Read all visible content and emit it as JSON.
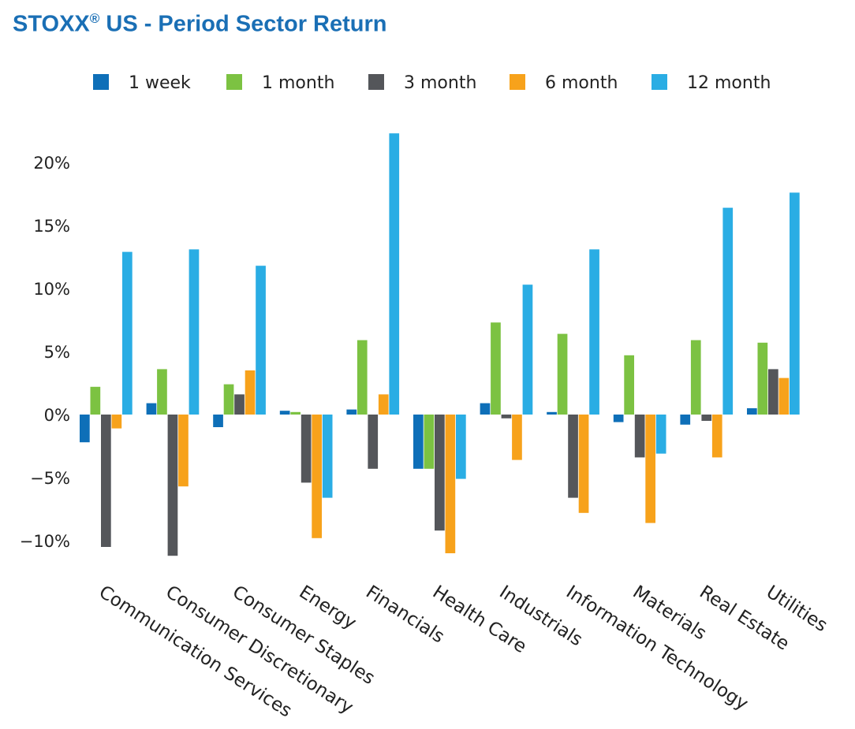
{
  "title": {
    "prefix": "STOXX",
    "sup": "®",
    "rest": " US - Period Sector Return"
  },
  "chart_data": {
    "type": "bar",
    "title": "STOXX® US - Period Sector Return",
    "xlabel": "",
    "ylabel": "",
    "ylim": [
      -12,
      24
    ],
    "yticks": [
      20,
      15,
      10,
      5,
      0,
      -5,
      -10
    ],
    "ytick_labels": [
      "20%",
      "15%",
      "10%",
      "5%",
      "0%",
      "−5%",
      "−10%"
    ],
    "grid": false,
    "legend_position": "top",
    "categories": [
      "Communication Services",
      "Consumer Discretionary",
      "Consumer Staples",
      "Energy",
      "Financials",
      "Health Care",
      "Industrials",
      "Information Technology",
      "Materials",
      "Real Estate",
      "Utilities"
    ],
    "series": [
      {
        "name": "1 week",
        "color": "#0e6fb8",
        "values": [
          -2.2,
          0.9,
          -1.0,
          0.3,
          0.4,
          -4.3,
          0.9,
          0.2,
          -0.6,
          -0.8,
          0.5
        ]
      },
      {
        "name": "1 month",
        "color": "#7cc242",
        "values": [
          2.2,
          3.6,
          2.4,
          0.2,
          5.9,
          -4.3,
          7.3,
          6.4,
          4.7,
          5.9,
          5.7
        ]
      },
      {
        "name": "3 month",
        "color": "#54565a",
        "values": [
          -10.5,
          -11.2,
          1.6,
          -5.4,
          -4.3,
          -9.2,
          -0.3,
          -6.6,
          -3.4,
          -0.5,
          3.6
        ]
      },
      {
        "name": "6 month",
        "color": "#f7a21b",
        "values": [
          -1.1,
          -5.7,
          3.5,
          -9.8,
          1.6,
          -11.0,
          -3.6,
          -7.8,
          -8.6,
          -3.4,
          2.9
        ]
      },
      {
        "name": "12 month",
        "color": "#2aade4",
        "values": [
          12.9,
          13.1,
          11.8,
          -6.6,
          22.3,
          -5.1,
          10.3,
          13.1,
          -3.1,
          16.4,
          17.6
        ]
      }
    ]
  }
}
